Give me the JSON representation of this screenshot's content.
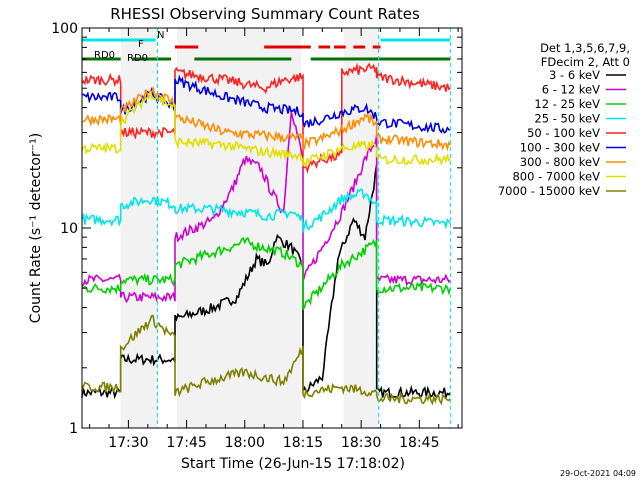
{
  "chart_data": {
    "type": "line",
    "title": "RHESSI Observing Summary Count Rates",
    "xlabel": "Start Time (26-Jun-15 17:18:02)",
    "ylabel": "Count Rate (s⁻¹ detector⁻¹)",
    "yscale": "log",
    "ylim": [
      1,
      100
    ],
    "xlim": [
      "17:18:02",
      "18:56:00"
    ],
    "x_ticks": [
      "17:30",
      "17:45",
      "18:00",
      "18:15",
      "18:30",
      "18:45"
    ],
    "y_ticks": [
      "1",
      "10",
      "100"
    ],
    "legend_header": [
      "Det 1,3,5,6,7,9,",
      "FDecim 2, Att 0"
    ],
    "legend_position": "right",
    "footer_date": "29-Oct-2021 04:09",
    "flags": [
      {
        "label": "N",
        "color": "#00e5e5",
        "segments": [
          [
            "17:18:02",
            "17:37:00"
          ],
          [
            "18:35:00",
            "18:53:00"
          ]
        ]
      },
      {
        "label": "F",
        "color": "#e00000",
        "segments": [
          [
            "17:42:00",
            "17:48:00"
          ],
          [
            "18:05:00",
            "18:17:00"
          ],
          [
            "18:19:00",
            "18:22:00"
          ],
          [
            "18:23:00",
            "18:26:00"
          ],
          [
            "18:28:00",
            "18:31:00"
          ],
          [
            "18:33:00",
            "18:35:00"
          ]
        ]
      },
      {
        "label": "RD0",
        "color": "#007000",
        "segments": [
          [
            "17:18:02",
            "17:28:00"
          ],
          [
            "17:31:00",
            "17:41:00"
          ],
          [
            "17:47:00",
            "18:12:00"
          ],
          [
            "18:17:00",
            "18:53:00"
          ]
        ]
      }
    ],
    "background_intervals": [
      [
        "17:28:00",
        "17:37:30"
      ],
      [
        "17:42:30",
        "18:14:30"
      ],
      [
        "18:25:30",
        "18:34:30"
      ]
    ],
    "series": [
      {
        "name": "3 - 6 keV",
        "color": "#000000",
        "x": [
          "17:18",
          "17:28",
          "17:28",
          "17:42",
          "17:42",
          "17:52",
          "17:58",
          "18:03",
          "18:06",
          "18:08",
          "18:12",
          "18:15",
          "18:15",
          "18:20",
          "18:24",
          "18:28",
          "18:31",
          "18:34",
          "18:34",
          "18:53"
        ],
        "y": [
          1.5,
          1.5,
          2.2,
          2.2,
          3.5,
          4.0,
          4.5,
          7.0,
          6.5,
          9.0,
          8.0,
          6.5,
          1.5,
          1.8,
          7.0,
          11.0,
          9.0,
          20.0,
          1.5,
          1.5
        ]
      },
      {
        "name": "6 - 12 keV",
        "color": "#d000d0",
        "x": [
          "17:18",
          "17:28",
          "17:28",
          "17:38",
          "17:42",
          "17:42",
          "17:52",
          "17:57",
          "18:00",
          "18:04",
          "18:07",
          "18:10",
          "18:12",
          "18:15",
          "18:15",
          "18:20",
          "18:25",
          "18:28",
          "18:31",
          "18:34",
          "18:34",
          "18:53"
        ],
        "y": [
          5.5,
          5.5,
          4.5,
          4.5,
          4.5,
          9.0,
          11.0,
          16.0,
          22.0,
          20.0,
          15.0,
          12.0,
          40.0,
          22.0,
          5.5,
          8.0,
          12.0,
          16.0,
          22.0,
          28.0,
          5.5,
          5.5
        ]
      },
      {
        "name": "12 - 25 keV",
        "color": "#00d000",
        "x": [
          "17:18",
          "17:28",
          "17:28",
          "17:42",
          "17:42",
          "18:00",
          "18:10",
          "18:15",
          "18:15",
          "18:25",
          "18:34",
          "18:34",
          "18:53"
        ],
        "y": [
          5.0,
          5.0,
          5.5,
          5.5,
          6.5,
          8.5,
          7.5,
          6.5,
          4.0,
          6.5,
          8.5,
          5.0,
          5.0
        ]
      },
      {
        "name": "25 - 50 keV",
        "color": "#00e5e5",
        "x": [
          "17:18",
          "17:28",
          "17:28",
          "17:36",
          "17:42",
          "17:42",
          "17:50",
          "18:00",
          "18:06",
          "18:12",
          "18:15",
          "18:15",
          "18:20",
          "18:25",
          "18:31",
          "18:34",
          "18:34",
          "18:53"
        ],
        "y": [
          11.0,
          11.0,
          13.0,
          14.0,
          13.0,
          12.5,
          12.5,
          12.0,
          11.5,
          12.0,
          11.0,
          10.0,
          11.5,
          14.0,
          15.0,
          13.0,
          11.0,
          10.5
        ]
      },
      {
        "name": "50 - 100 keV",
        "color": "#ff2020",
        "x": [
          "17:18",
          "17:28",
          "17:28",
          "17:36",
          "17:42",
          "17:42",
          "17:55",
          "18:05",
          "18:10",
          "18:15",
          "18:15",
          "18:20",
          "18:25",
          "18:25",
          "18:34",
          "18:34",
          "18:53"
        ],
        "y": [
          55,
          55,
          30,
          30,
          30,
          60,
          55,
          50,
          55,
          57,
          20,
          22,
          23,
          60,
          63,
          57,
          50
        ]
      },
      {
        "name": "100 - 300 keV",
        "color": "#0000e0",
        "x": [
          "17:18",
          "17:28",
          "17:28",
          "17:36",
          "17:42",
          "17:42",
          "17:55",
          "18:05",
          "18:10",
          "18:15",
          "18:15",
          "18:20",
          "18:25",
          "18:31",
          "18:34",
          "18:34",
          "18:53"
        ],
        "y": [
          45,
          45,
          38,
          47,
          40,
          55,
          45,
          40,
          39,
          38,
          33,
          35,
          38,
          40,
          36,
          34,
          31
        ]
      },
      {
        "name": "300 - 800 keV",
        "color": "#ff8c00",
        "x": [
          "17:18",
          "17:28",
          "17:28",
          "17:36",
          "17:42",
          "17:42",
          "17:55",
          "18:05",
          "18:15",
          "18:15",
          "18:20",
          "18:25",
          "18:31",
          "18:34",
          "18:34",
          "18:53"
        ],
        "y": [
          35,
          35,
          38,
          49,
          42,
          36,
          30,
          29,
          28,
          26,
          28,
          31,
          36,
          33,
          28,
          26
        ]
      },
      {
        "name": "800 - 7000 keV",
        "color": "#e0e000",
        "x": [
          "17:18",
          "17:28",
          "17:28",
          "17:36",
          "17:42",
          "17:42",
          "17:55",
          "18:05",
          "18:15",
          "18:15",
          "18:20",
          "18:25",
          "18:34",
          "18:34",
          "18:53"
        ],
        "y": [
          25,
          25,
          34,
          47,
          40,
          27,
          26,
          24,
          23,
          21,
          23,
          25,
          26,
          22,
          22
        ]
      },
      {
        "name": "7000 - 15000 keV",
        "color": "#808000",
        "x": [
          "17:18",
          "17:28",
          "17:28",
          "17:36",
          "17:42",
          "17:42",
          "17:50",
          "18:00",
          "18:10",
          "18:15",
          "18:15",
          "18:25",
          "18:34",
          "18:34",
          "18:53"
        ],
        "y": [
          1.6,
          1.6,
          2.5,
          3.5,
          2.8,
          1.5,
          1.7,
          1.9,
          1.7,
          2.5,
          1.5,
          1.6,
          1.5,
          1.4,
          1.4
        ]
      }
    ]
  }
}
